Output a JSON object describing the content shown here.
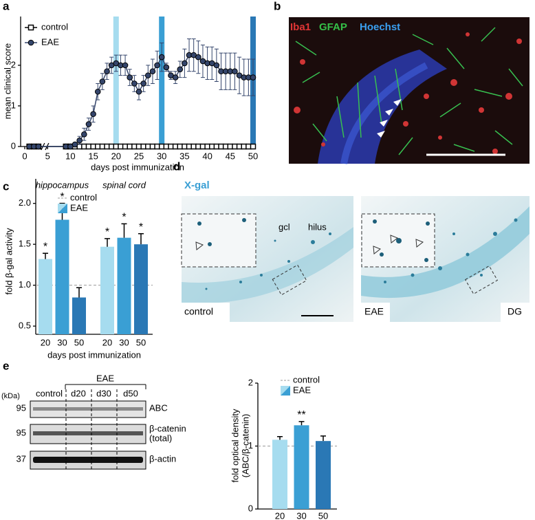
{
  "panel_labels": [
    "a",
    "b",
    "c",
    "d",
    "e"
  ],
  "chart_data": [
    {
      "type": "line",
      "xlabel": "days post immunization",
      "ylabel": "mean clinical score",
      "x": [
        1,
        2,
        3,
        9,
        10,
        11,
        12,
        13,
        14,
        15,
        16,
        17,
        18,
        19,
        20,
        21,
        22,
        23,
        24,
        25,
        26,
        27,
        28,
        29,
        30,
        31,
        32,
        33,
        34,
        35,
        36,
        37,
        38,
        39,
        40,
        41,
        42,
        43,
        44,
        45,
        46,
        47,
        48,
        49,
        50
      ],
      "xlim": [
        0,
        50
      ],
      "xticks": [
        0,
        5,
        10,
        15,
        20,
        25,
        30,
        35,
        40,
        45,
        50
      ],
      "ylim": [
        0,
        3.2
      ],
      "yticks": [
        0,
        1,
        2
      ],
      "series": [
        {
          "name": "control",
          "color": "#000000",
          "marker": "square",
          "values": [
            0,
            0,
            0,
            0,
            0,
            0,
            0,
            0,
            0,
            0,
            0,
            0,
            0,
            0,
            0,
            0,
            0,
            0,
            0,
            0,
            0,
            0,
            0,
            0,
            0,
            0,
            0,
            0,
            0,
            0,
            0,
            0,
            0,
            0,
            0,
            0,
            0,
            0,
            0,
            0,
            0,
            0,
            0,
            0,
            0
          ]
        },
        {
          "name": "EAE",
          "color": "#34456b",
          "marker": "circle",
          "values": [
            0,
            0,
            0,
            0,
            0,
            0.05,
            0.15,
            0.3,
            0.55,
            0.8,
            1.35,
            1.6,
            1.85,
            2.0,
            2.05,
            2.0,
            2.0,
            1.7,
            1.55,
            1.35,
            1.55,
            1.75,
            1.85,
            2.0,
            2.2,
            1.95,
            1.75,
            1.7,
            1.9,
            2.05,
            2.25,
            2.25,
            2.2,
            2.1,
            2.05,
            2.05,
            2.0,
            1.85,
            1.85,
            1.85,
            1.85,
            1.75,
            1.7,
            1.7,
            1.7
          ],
          "errors": [
            0,
            0,
            0,
            0,
            0,
            0.05,
            0.1,
            0.15,
            0.15,
            0.2,
            0.2,
            0.2,
            0.2,
            0.2,
            0.2,
            0.25,
            0.25,
            0.2,
            0.2,
            0.2,
            0.2,
            0.25,
            0.3,
            0.35,
            0.35,
            0.1,
            0.1,
            0.15,
            0.2,
            0.35,
            0.4,
            0.4,
            0.4,
            0.4,
            0.4,
            0.4,
            0.4,
            0.45,
            0.45,
            0.45,
            0.45,
            0.45,
            0.45,
            0.45,
            0.45
          ]
        }
      ],
      "highlights": [
        {
          "x": 20,
          "color": "#a6dcef"
        },
        {
          "x": 30,
          "color": "#3a9fd4"
        },
        {
          "x": 50,
          "color": "#2a78b5"
        }
      ]
    },
    {
      "type": "bar",
      "xlabel": "days post immunization",
      "ylabel": "fold β-gal activity",
      "ylim": [
        0.4,
        2.3
      ],
      "yticks": [
        0.5,
        {
          "value": 1,
          "label": "1.0"
        },
        1.5,
        {
          "value": 2,
          "label": "2.0"
        }
      ],
      "reference": {
        "name": "control",
        "value": 1
      },
      "series_name": "EAE",
      "groups": [
        {
          "name": "hippocampus",
          "categories": [
            "20",
            "30",
            "50"
          ],
          "values": [
            1.32,
            1.8,
            0.85
          ],
          "errors": [
            0.07,
            0.2,
            0.12
          ],
          "colors": [
            "#a6dcef",
            "#3a9fd4",
            "#2a78b5"
          ],
          "significance": [
            "*",
            "*",
            null
          ]
        },
        {
          "name": "spinal cord",
          "categories": [
            "20",
            "30",
            "50"
          ],
          "values": [
            1.47,
            1.58,
            1.5
          ],
          "errors": [
            0.1,
            0.17,
            0.13
          ],
          "colors": [
            "#a6dcef",
            "#3a9fd4",
            "#2a78b5"
          ],
          "significance": [
            "*",
            "*",
            "*"
          ]
        }
      ]
    },
    {
      "type": "bar",
      "ylabel": [
        "fold optical density",
        "(ABC/β-catenin)"
      ],
      "ylim": [
        0,
        2
      ],
      "yticks": [
        0,
        1,
        2
      ],
      "reference": {
        "name": "control",
        "value": 1
      },
      "series_name": "EAE",
      "categories": [
        "20",
        "30",
        "50"
      ],
      "values": [
        1.1,
        1.33,
        1.08
      ],
      "errors": [
        0.05,
        0.06,
        0.08
      ],
      "colors": [
        "#a6dcef",
        "#3a9fd4",
        "#2a78b5"
      ],
      "significance": [
        null,
        "**",
        null
      ]
    }
  ],
  "panel_b": {
    "stains": [
      "Iba1",
      "GFAP",
      "Hoechst"
    ]
  },
  "panel_d": {
    "stain": "X-gal",
    "regions": [
      "gcl",
      "hilus"
    ],
    "conditions": [
      "control",
      "EAE"
    ],
    "region": "DG"
  },
  "panel_e_blot": {
    "unit": "(kDa)",
    "groups": [
      "control",
      "EAE"
    ],
    "days": [
      "d20",
      "d30",
      "d50"
    ],
    "markers": [
      "95",
      "95",
      "37"
    ],
    "bands": [
      "ABC",
      "β-catenin",
      "(total)",
      "β-actin"
    ]
  }
}
